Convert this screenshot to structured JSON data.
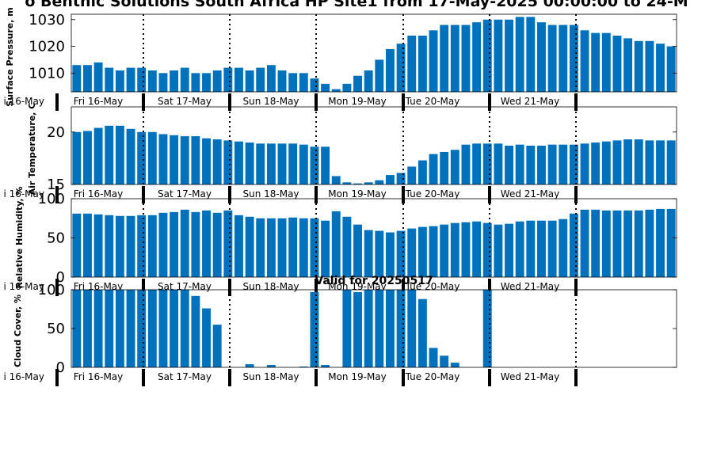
{
  "title": "o Benthic Solutions South Africa HP Site1 from 17-May-2025 00:00:00 to 24-M",
  "valid_label": "Valid for 20250517",
  "colors": {
    "bar": "#0072bd",
    "axis": "#000000",
    "background": "#ffffff"
  },
  "day_labels": [
    "Fri 16-May",
    "Sat 17-May",
    "Sun 18-May",
    "Mon 19-May",
    "Tue 20-May",
    "Wed 21-May"
  ],
  "left_cut_label": "i 16-May",
  "chart_data": [
    {
      "type": "bar",
      "ylabel": "Surface Pressure, m",
      "ylim": [
        1003,
        1032
      ],
      "yticks": [
        1010,
        1020,
        1030
      ],
      "grid": false,
      "values": [
        1013,
        1013,
        1014,
        1012,
        1011,
        1012,
        1012,
        1011,
        1010,
        1011,
        1012,
        1010,
        1010,
        1011,
        1012,
        1012,
        1011,
        1012,
        1013,
        1011,
        1010,
        1010,
        1008,
        1006,
        1004,
        1006,
        1009,
        1011,
        1015,
        1019,
        1021,
        1024,
        1024,
        1026,
        1028,
        1028,
        1028,
        1029,
        1030,
        1030,
        1030,
        1031,
        1031,
        1029,
        1028,
        1028,
        1028,
        1026,
        1025,
        1025,
        1024,
        1023,
        1022,
        1022,
        1021,
        1020
      ]
    },
    {
      "type": "bar",
      "ylabel": "Air Temperature, C",
      "ylim": [
        15,
        22.4
      ],
      "yticks": [
        15,
        20
      ],
      "grid": false,
      "values": [
        20.0,
        20.1,
        20.4,
        20.6,
        20.6,
        20.3,
        20.0,
        20.0,
        19.8,
        19.7,
        19.6,
        19.6,
        19.4,
        19.3,
        19.2,
        19.1,
        19.0,
        18.9,
        18.9,
        18.9,
        18.9,
        18.8,
        18.6,
        18.6,
        15.8,
        15.2,
        15.1,
        15.2,
        15.4,
        15.9,
        16.1,
        16.7,
        17.3,
        17.9,
        18.1,
        18.3,
        18.8,
        18.9,
        18.9,
        18.9,
        18.7,
        18.8,
        18.7,
        18.7,
        18.8,
        18.8,
        18.8,
        18.9,
        19.0,
        19.1,
        19.2,
        19.3,
        19.3,
        19.2,
        19.2,
        19.2
      ]
    },
    {
      "type": "bar",
      "ylabel": "Relative Humidity, %",
      "ylim": [
        0,
        100
      ],
      "yticks": [
        0,
        50,
        100
      ],
      "grid": false,
      "values": [
        81,
        81,
        80,
        79,
        78,
        78,
        79,
        79,
        82,
        83,
        86,
        83,
        85,
        82,
        85,
        79,
        77,
        75,
        75,
        75,
        76,
        75,
        75,
        72,
        84,
        77,
        67,
        60,
        59,
        57,
        59,
        62,
        64,
        65,
        67,
        69,
        70,
        71,
        69,
        67,
        68,
        71,
        72,
        72,
        72,
        74,
        81,
        86,
        86,
        85,
        85,
        85,
        85,
        86,
        87,
        87
      ]
    },
    {
      "type": "bar",
      "ylabel": "Cloud Cover, %",
      "ylim": [
        0,
        100
      ],
      "yticks": [
        0,
        50,
        100
      ],
      "grid": false,
      "values": [
        100,
        100,
        100,
        100,
        100,
        100,
        100,
        100,
        100,
        100,
        100,
        92,
        76,
        55,
        0,
        0,
        4,
        0,
        3,
        0,
        0,
        1,
        97,
        3,
        0,
        100,
        97,
        100,
        100,
        100,
        100,
        100,
        88,
        25,
        15,
        6,
        0,
        0,
        100,
        0,
        0,
        0,
        0,
        0,
        0,
        0,
        0,
        0,
        0,
        0,
        0,
        0,
        0,
        0,
        0,
        0
      ]
    }
  ]
}
